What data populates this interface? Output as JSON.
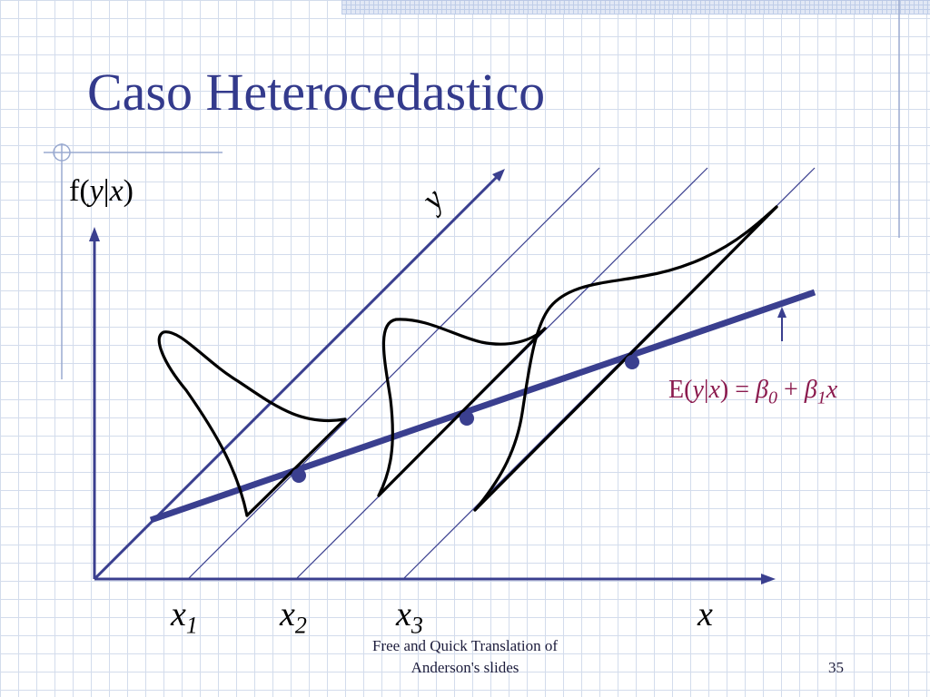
{
  "slide": {
    "title": "Caso Heterocedastico",
    "y_axis_label": {
      "prefix": "f(",
      "var1": "y",
      "bar": "|",
      "var2": "x",
      "suffix": ")"
    },
    "diagonal_axis_label": "y",
    "x_axis_label": "x",
    "x_ticks": [
      {
        "base": "x",
        "sub": "1"
      },
      {
        "base": "x",
        "sub": "2"
      },
      {
        "base": "x",
        "sub": "3"
      }
    ],
    "equation": {
      "lhs_prefix": "E(",
      "lhs_y": "y",
      "lhs_bar": "|",
      "lhs_x": "x",
      "lhs_suffix": ") = ",
      "beta": "β",
      "sub0": "0",
      "plus": " + ",
      "sub1": "1",
      "var": "x"
    },
    "footer_line1": "Free and Quick Translation of",
    "footer_line2": "Anderson's slides",
    "page_number": "35",
    "colors": {
      "title": "#333a8c",
      "axis": "#3a3f8f",
      "regression": "#3a3f8f",
      "equation": "#8a1a4e",
      "curves": "#000000"
    }
  }
}
